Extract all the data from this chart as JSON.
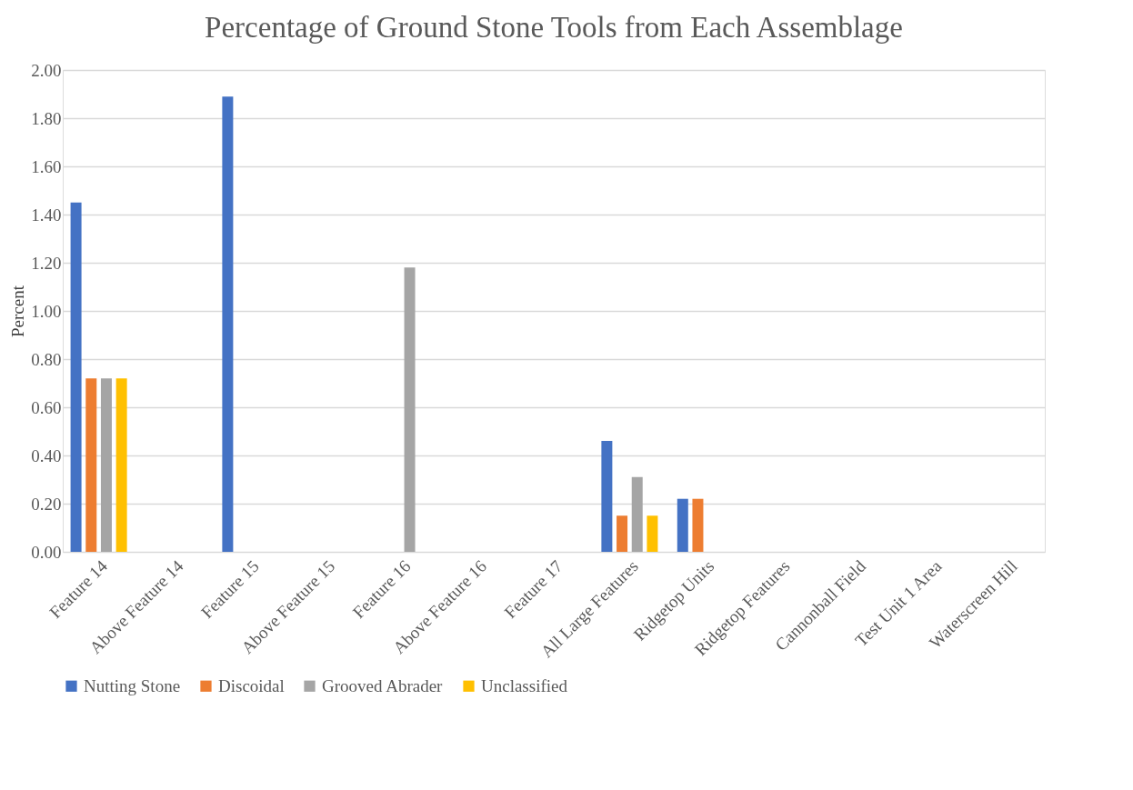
{
  "chart_data": {
    "type": "bar",
    "title": "Percentage of Ground Stone Tools from Each Assemblage",
    "ylabel": "Percent",
    "categories": [
      "Feature 14",
      "Above Feature 14",
      "Feature 15",
      "Above Feature 15",
      "Feature 16",
      "Above Feature 16",
      "Feature 17",
      "All Large Features",
      "Ridgetop Units",
      "Ridgetop Features",
      "Cannonball Field",
      "Test Unit 1 Area",
      "Waterscreen Hill"
    ],
    "series": [
      {
        "name": "Nutting Stone",
        "color": "#4472c4",
        "values": [
          1.45,
          0,
          1.89,
          0,
          0,
          0,
          0,
          0.46,
          0.22,
          0,
          0,
          0,
          0
        ]
      },
      {
        "name": "Discoidal",
        "color": "#ed7d31",
        "values": [
          0.72,
          0,
          0,
          0,
          0,
          0,
          0,
          0.15,
          0.22,
          0,
          0,
          0,
          0
        ]
      },
      {
        "name": "Grooved Abrader",
        "color": "#a5a5a5",
        "values": [
          0.72,
          0,
          0,
          0,
          1.18,
          0,
          0,
          0.31,
          0,
          0,
          0,
          0,
          0
        ]
      },
      {
        "name": "Unclassified",
        "color": "#ffc000",
        "values": [
          0.72,
          0,
          0,
          0,
          0,
          0,
          0,
          0.15,
          0,
          0,
          0,
          0,
          0
        ]
      }
    ],
    "ylim": [
      0,
      2
    ],
    "yticks": [
      {
        "value": 0,
        "label": "0.00"
      },
      {
        "value": 0.2,
        "label": "0.20"
      },
      {
        "value": 0.4,
        "label": "0.40"
      },
      {
        "value": 0.6,
        "label": "0.60"
      },
      {
        "value": 0.8,
        "label": "0.80"
      },
      {
        "value": 1.0,
        "label": "1.00"
      },
      {
        "value": 1.2,
        "label": "1.20"
      },
      {
        "value": 1.4,
        "label": "1.40"
      },
      {
        "value": 1.6,
        "label": "1.60"
      },
      {
        "value": 1.8,
        "label": "1.80"
      },
      {
        "value": 2.0,
        "label": "2.00"
      }
    ],
    "grid": "y",
    "legend": "bottom"
  }
}
